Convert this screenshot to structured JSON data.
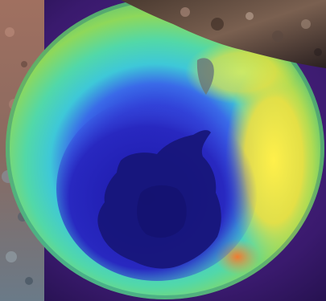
{
  "image": {
    "subject": "ozone-hole-globe",
    "palette": {
      "background_purple": "#3a1a6e",
      "ozone_hole_deep_blue": "#1e1aa8",
      "hole_ring_blue": "#3a4ae0",
      "cyan_band": "#3ed8d0",
      "green_band": "#7ed85a",
      "yellow_band": "#f0e63a",
      "orange_spot": "#f08a3a",
      "antarctica_navy": "#171678",
      "rock_brown": "#7a6050",
      "water_grey": "#6a7a88"
    }
  }
}
